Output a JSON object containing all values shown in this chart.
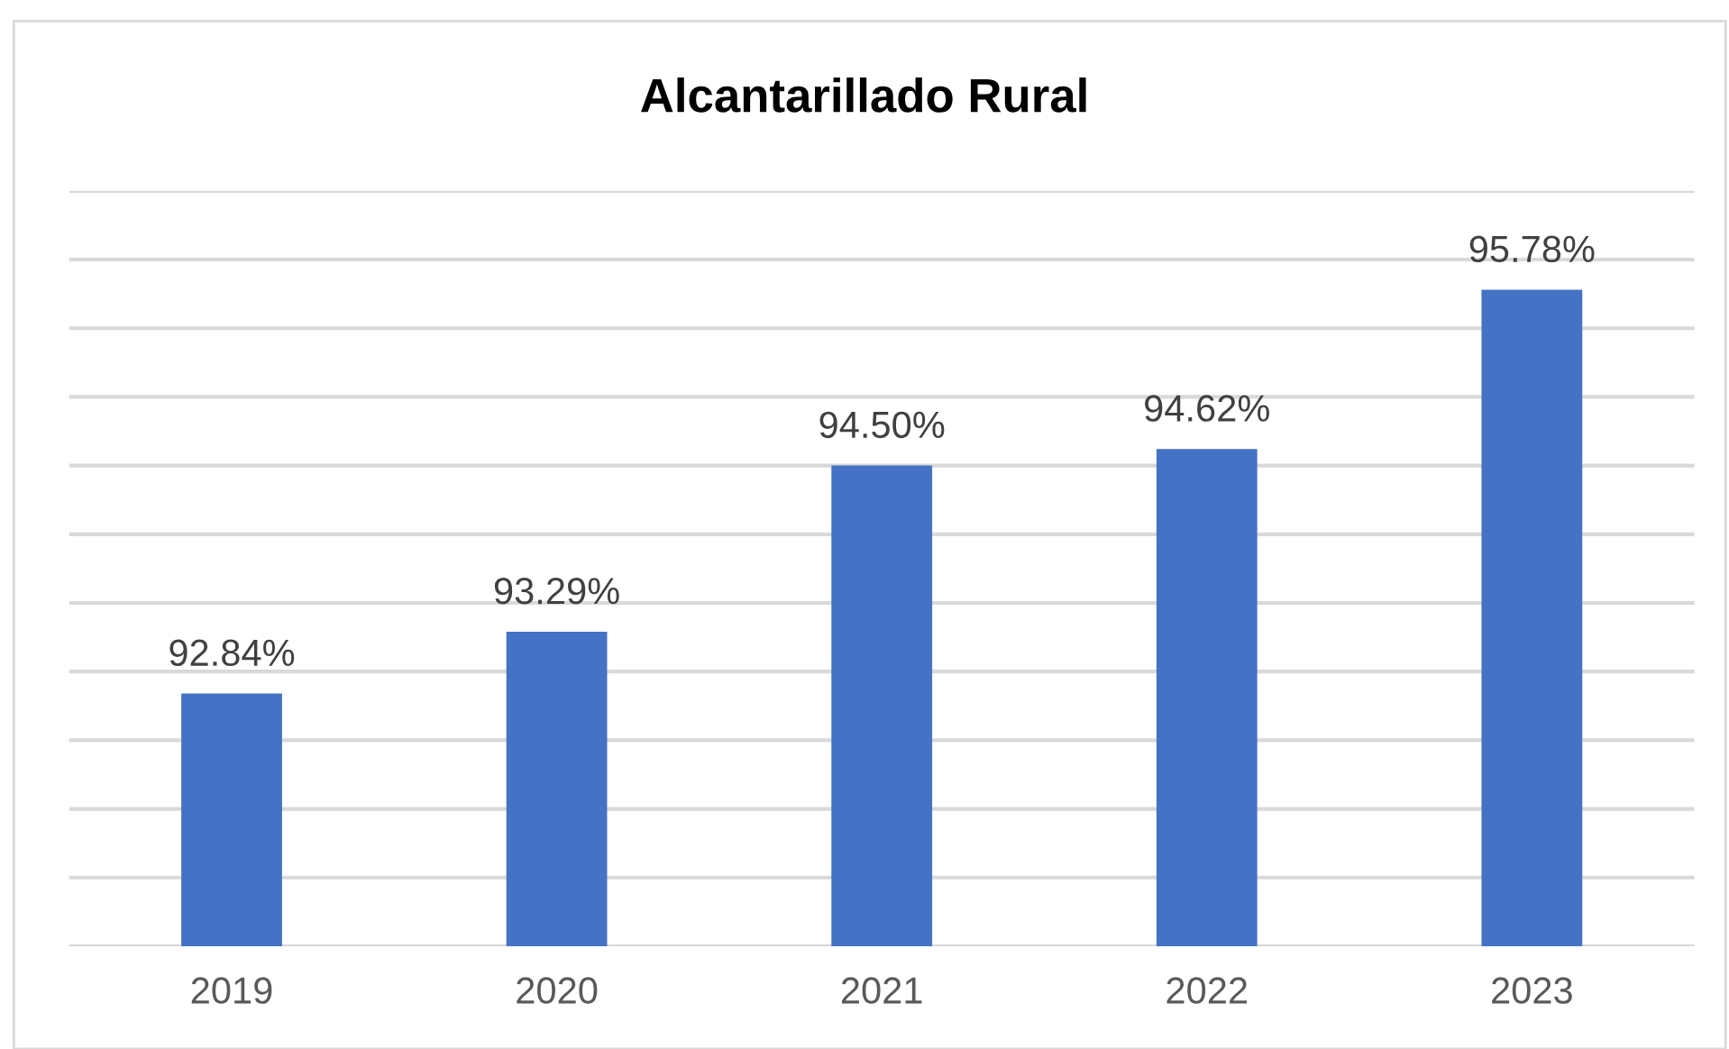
{
  "chart_data": {
    "type": "bar",
    "title": "Alcantarillado Rural",
    "categories": [
      "2019",
      "2020",
      "2021",
      "2022",
      "2023"
    ],
    "values": [
      92.84,
      93.29,
      94.5,
      94.62,
      95.78
    ],
    "value_labels": [
      "92.84%",
      "93.29%",
      "94.50%",
      "94.62%",
      "95.78%"
    ],
    "color": "#4472c4",
    "ylim": [
      91,
      96.5
    ],
    "yticks": [
      {
        "value": 91,
        "label": null
      },
      {
        "value": 91.5,
        "label": null
      },
      {
        "value": 92,
        "label": null
      },
      {
        "value": 92.5,
        "label": null
      },
      {
        "value": 93,
        "label": null
      },
      {
        "value": 93.5,
        "label": null
      },
      {
        "value": 94,
        "label": null
      },
      {
        "value": 94.5,
        "label": null
      },
      {
        "value": 95,
        "label": null
      },
      {
        "value": 95.5,
        "label": null
      },
      {
        "value": 96,
        "label": null
      },
      {
        "value": 96.5,
        "label": null
      }
    ],
    "grid": "y",
    "tick_labels": "x"
  }
}
